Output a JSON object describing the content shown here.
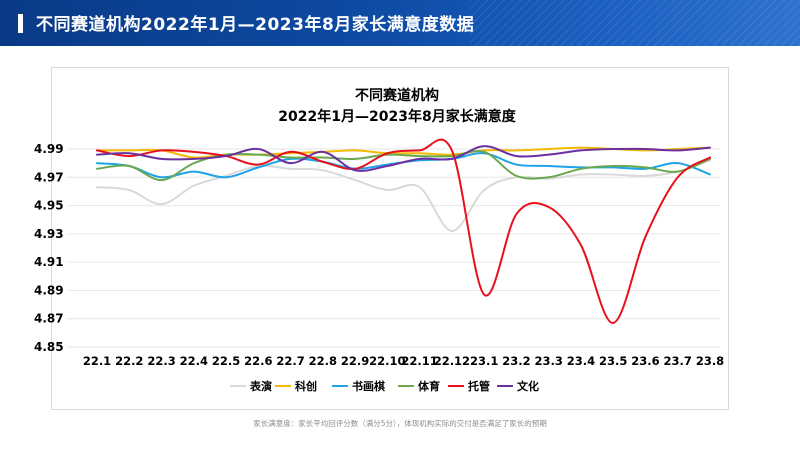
{
  "header": {
    "title": "不同赛道机构2022年1月—2023年8月家长满意度数据"
  },
  "footnote": "家长满意度：家长平均回评分数（满分5分），体现机构实际的交付是否满足了家长的预期",
  "colors": {
    "header_bg": "#0d4aa3",
    "axis_text": "#000000",
    "grid": "#e6e6e6"
  },
  "chart_data": {
    "type": "line",
    "title": "不同赛道机构",
    "subtitle": "2022年1月—2023年8月家长满意度",
    "xlabel": "",
    "ylabel": "",
    "ylim": [
      4.85,
      4.99
    ],
    "yticks": [
      "4.99",
      "4.97",
      "4.95",
      "4.93",
      "4.91",
      "4.89",
      "4.87",
      "4.85"
    ],
    "categories": [
      "22.1",
      "22.2",
      "22.3",
      "22.4",
      "22.5",
      "22.6",
      "22.7",
      "22.8",
      "22.9",
      "22.10",
      "22.11",
      "22.12",
      "23.1",
      "23.2",
      "23.3",
      "23.4",
      "23.5",
      "23.6",
      "23.7",
      "23.8"
    ],
    "legend_position": "bottom",
    "series": [
      {
        "name": "表演",
        "color": "#d9d9d9",
        "values": [
          4.963,
          4.961,
          4.951,
          4.964,
          4.971,
          4.978,
          4.976,
          4.975,
          4.968,
          4.961,
          4.963,
          4.932,
          4.961,
          4.97,
          4.969,
          4.972,
          4.972,
          4.971,
          4.974,
          4.982
        ]
      },
      {
        "name": "科创",
        "color": "#f5b800",
        "values": [
          4.989,
          4.989,
          4.989,
          4.984,
          4.986,
          4.986,
          4.987,
          4.988,
          4.989,
          4.987,
          4.987,
          4.986,
          4.989,
          4.989,
          4.99,
          4.991,
          4.99,
          4.989,
          4.99,
          4.991
        ]
      },
      {
        "name": "书画棋",
        "color": "#1fa3e8",
        "values": [
          4.98,
          4.978,
          4.97,
          4.974,
          4.97,
          4.977,
          4.983,
          4.981,
          4.976,
          4.979,
          4.982,
          4.983,
          4.987,
          4.979,
          4.978,
          4.977,
          4.977,
          4.976,
          4.98,
          4.972
        ]
      },
      {
        "name": "体育",
        "color": "#6aa84f",
        "values": [
          4.976,
          4.978,
          4.968,
          4.98,
          4.986,
          4.986,
          4.984,
          4.984,
          4.983,
          4.986,
          4.985,
          4.985,
          4.988,
          4.971,
          4.97,
          4.976,
          4.978,
          4.977,
          4.974,
          4.983
        ]
      },
      {
        "name": "托管",
        "color": "#e8111b",
        "values": [
          4.989,
          4.985,
          4.989,
          4.988,
          4.985,
          4.979,
          4.988,
          4.981,
          4.976,
          4.987,
          4.989,
          4.989,
          4.887,
          4.944,
          4.949,
          4.922,
          4.867,
          4.928,
          4.97,
          4.984
        ]
      },
      {
        "name": "文化",
        "color": "#6b2fa0",
        "values": [
          4.986,
          4.987,
          4.983,
          4.983,
          4.985,
          4.99,
          4.98,
          4.988,
          4.975,
          4.978,
          4.983,
          4.983,
          4.992,
          4.985,
          4.986,
          4.989,
          4.99,
          4.99,
          4.989,
          4.991
        ]
      }
    ]
  }
}
